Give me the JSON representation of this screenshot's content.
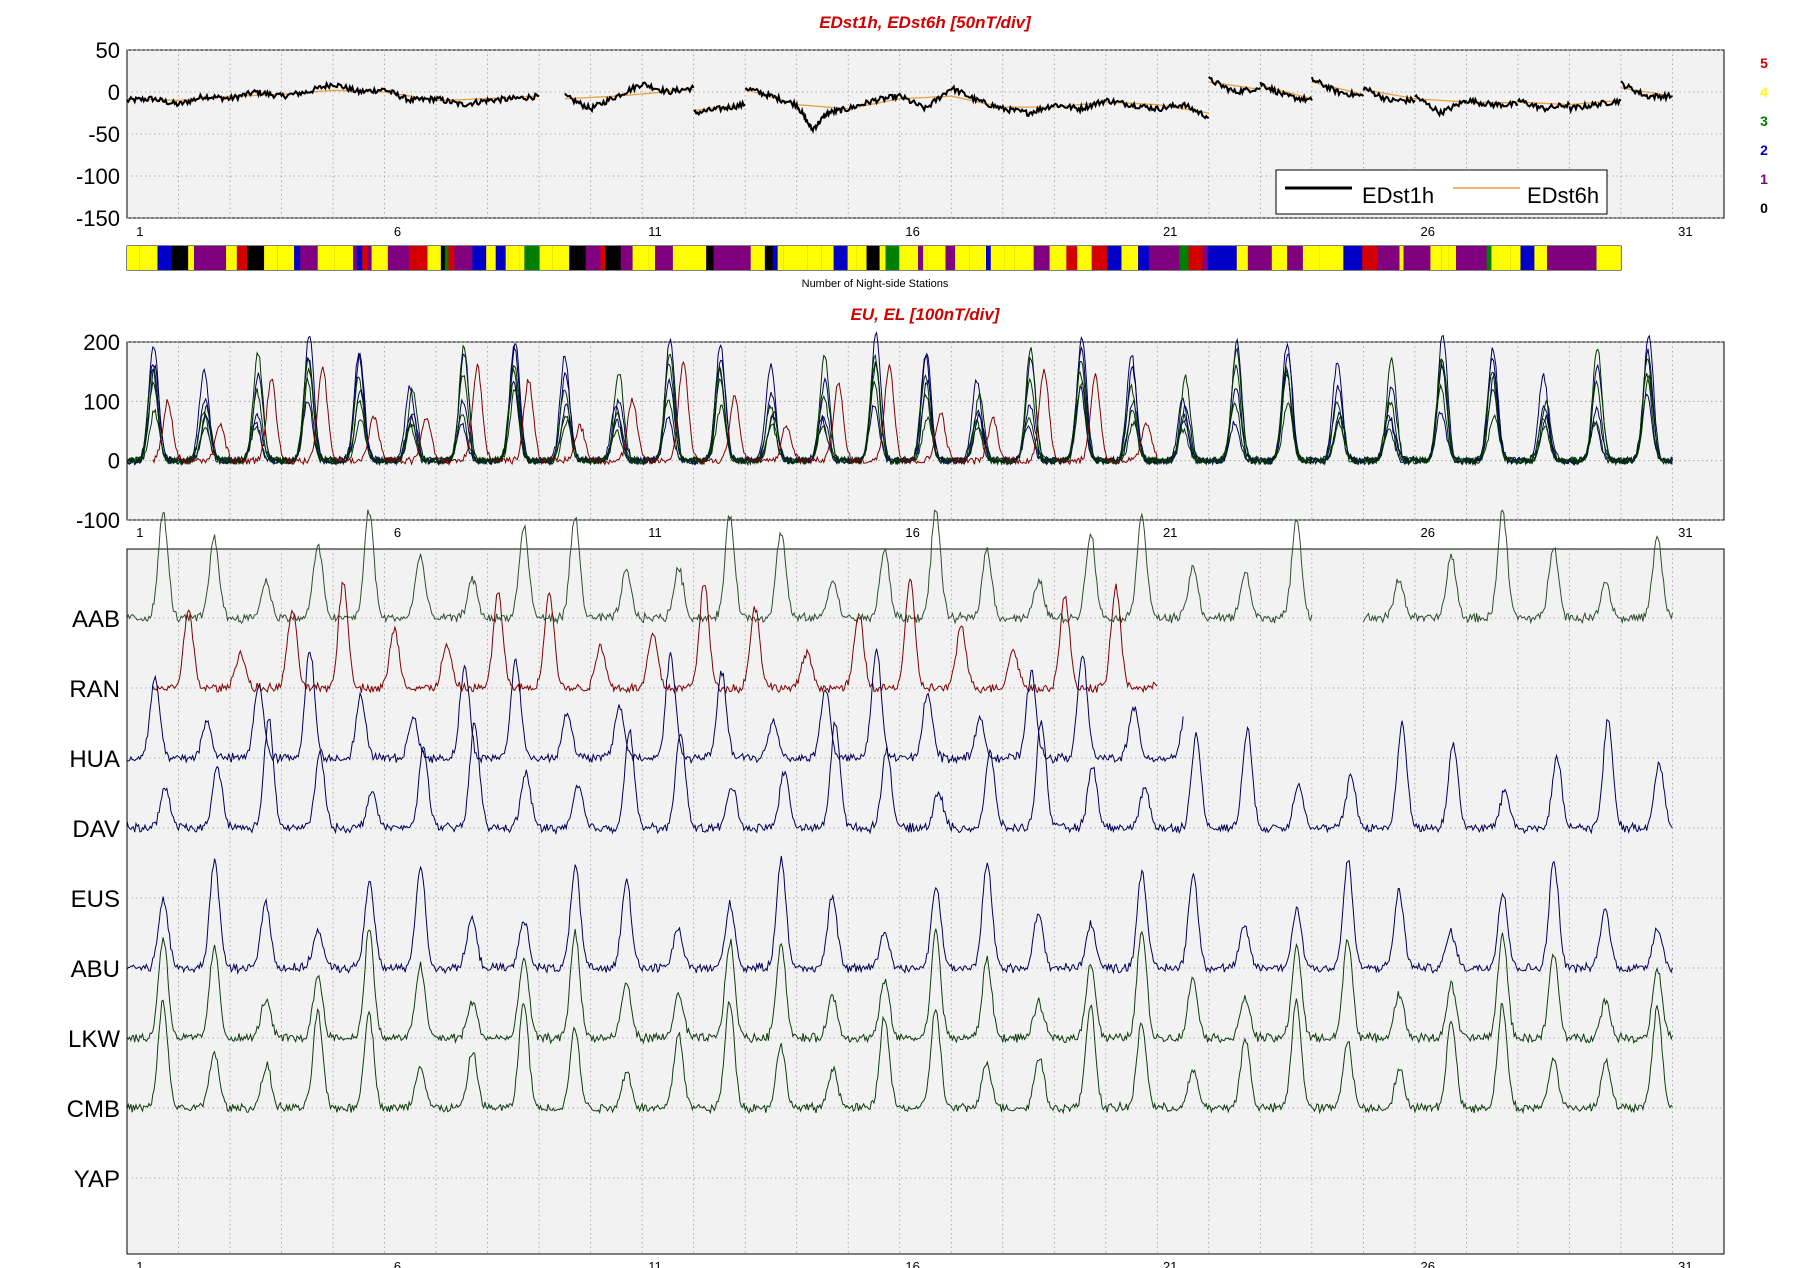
{
  "chart_data": [
    {
      "type": "line",
      "title": "EDst1h, EDst6h [50nT/div]",
      "ylim": [
        -150,
        50
      ],
      "yticks": [
        "50",
        "0",
        "-50",
        "-100",
        "-150"
      ],
      "xlim": [
        0,
        31
      ],
      "xticks": [
        "1",
        "6",
        "11",
        "16",
        "21",
        "26",
        "31"
      ],
      "grid": true,
      "legend": {
        "position": "bottom-right",
        "entries": [
          "EDst1h",
          "EDst6h"
        ]
      },
      "colors": {
        "EDst1h": "#000000",
        "EDst6h": "#e8a040"
      },
      "series": [
        {
          "name": "EDst1h",
          "segments": [
            {
              "x": [
                0.0,
                0.5,
                1.0,
                1.5,
                2.0,
                2.5,
                3.0,
                3.5,
                4.0,
                4.5,
                5.0,
                5.5,
                6.0,
                6.5,
                7.0,
                7.5,
                8.0
              ],
              "y": [
                -10,
                -8,
                -15,
                -5,
                -8,
                0,
                -5,
                0,
                10,
                0,
                3,
                -10,
                -8,
                -15,
                -10,
                -8,
                -5
              ]
            },
            {
              "x": [
                8.5,
                9.0,
                9.5,
                10.0,
                10.5,
                11.0
              ],
              "y": [
                -5,
                -20,
                -5,
                10,
                0,
                5
              ]
            },
            {
              "x": [
                11.0,
                11.5,
                12.0
              ],
              "y": [
                -25,
                -20,
                -15
              ]
            },
            {
              "x": [
                12.0,
                12.5,
                13.0,
                13.3,
                13.6,
                14.0,
                14.5,
                15.0,
                15.5,
                16.0,
                16.5,
                17.0,
                17.5,
                18.0,
                18.5,
                19.0,
                19.5,
                20.0,
                20.5,
                21.0
              ],
              "y": [
                5,
                -5,
                -15,
                -45,
                -25,
                -20,
                -10,
                -5,
                -20,
                5,
                -10,
                -20,
                -25,
                -15,
                -20,
                -10,
                -15,
                -20,
                -15,
                -30
              ]
            },
            {
              "x": [
                21.0,
                21.5,
                22.0
              ],
              "y": [
                15,
                0,
                5
              ]
            },
            {
              "x": [
                22.0,
                22.5,
                23.0
              ],
              "y": [
                10,
                -5,
                -10
              ]
            },
            {
              "x": [
                23.0,
                23.5,
                24.0
              ],
              "y": [
                15,
                0,
                -5
              ]
            },
            {
              "x": [
                24.0,
                24.5,
                25.0
              ],
              "y": [
                5,
                -10,
                -10
              ]
            },
            {
              "x": [
                25.0,
                25.5,
                26.0
              ],
              "y": [
                -5,
                -25,
                -10
              ]
            },
            {
              "x": [
                26.0,
                26.5,
                27.0
              ],
              "y": [
                -10,
                -15,
                -15
              ]
            },
            {
              "x": [
                27.0,
                27.5,
                28.0
              ],
              "y": [
                -10,
                -20,
                -15
              ]
            },
            {
              "x": [
                28.0,
                28.5,
                29.0
              ],
              "y": [
                -20,
                -15,
                -10
              ]
            },
            {
              "x": [
                29.0,
                29.5,
                30.0
              ],
              "y": [
                10,
                -5,
                -5
              ]
            }
          ]
        },
        {
          "name": "EDst6h",
          "segments": [
            {
              "x": [
                0.0,
                1.0,
                2.0,
                3.0,
                4.0,
                5.0,
                6.0,
                7.0,
                8.0
              ],
              "y": [
                -8,
                -10,
                -5,
                -3,
                2,
                0,
                -10,
                -8,
                -5
              ]
            },
            {
              "x": [
                8.5,
                9.5,
                11.0
              ],
              "y": [
                -8,
                -5,
                3
              ]
            },
            {
              "x": [
                11.0,
                12.0
              ],
              "y": [
                -22,
                -15
              ]
            },
            {
              "x": [
                12.0,
                13.0,
                14.0,
                15.0,
                16.0,
                17.0,
                18.0,
                19.0,
                20.0,
                21.0
              ],
              "y": [
                3,
                -15,
                -20,
                -8,
                -5,
                -18,
                -18,
                -12,
                -15,
                -25
              ]
            },
            {
              "x": [
                21.0,
                22.0
              ],
              "y": [
                12,
                3
              ]
            },
            {
              "x": [
                22.0,
                23.0
              ],
              "y": [
                8,
                -8
              ]
            },
            {
              "x": [
                23.0,
                24.0
              ],
              "y": [
                12,
                -3
              ]
            },
            {
              "x": [
                24.0,
                25.0
              ],
              "y": [
                3,
                -8
              ]
            },
            {
              "x": [
                25.0,
                26.0
              ],
              "y": [
                -8,
                -12
              ]
            },
            {
              "x": [
                26.0,
                27.0
              ],
              "y": [
                -12,
                -13
              ]
            },
            {
              "x": [
                27.0,
                28.0
              ],
              "y": [
                -12,
                -15
              ]
            },
            {
              "x": [
                28.0,
                29.0
              ],
              "y": [
                -15,
                -10
              ]
            },
            {
              "x": [
                29.0,
                30.0
              ],
              "y": [
                5,
                -5
              ]
            }
          ]
        }
      ]
    },
    {
      "type": "heatmap",
      "title": "Number of Night-side Stations",
      "xlim": [
        0,
        31
      ],
      "range": [
        0,
        29
      ],
      "scale": [
        {
          "label": "5",
          "color": "#d40000"
        },
        {
          "label": "4",
          "color": "#ffff00"
        },
        {
          "label": "3",
          "color": "#008000"
        },
        {
          "label": "2",
          "color": "#0000c8"
        },
        {
          "label": "1",
          "color": "#800080"
        },
        {
          "label": "0",
          "color": "#000000"
        }
      ]
    },
    {
      "type": "line",
      "title": "EU, EL   [100nT/div]",
      "ylim": [
        -100,
        200
      ],
      "yticks": [
        "200",
        "100",
        "0",
        "-100"
      ],
      "xlim": [
        0,
        31
      ],
      "xticks": [
        "1",
        "6",
        "11",
        "16",
        "21",
        "26",
        "31"
      ],
      "grid": true,
      "series": [
        {
          "color": "#000060",
          "peak": 150,
          "range": [
            0,
            30
          ]
        },
        {
          "color": "#003300",
          "peak": 130,
          "range": [
            0,
            30
          ]
        },
        {
          "color": "#800000",
          "peak": 140,
          "range": [
            0.5,
            20
          ]
        }
      ]
    },
    {
      "type": "line",
      "xlim": [
        0,
        31
      ],
      "xticks": [
        "1",
        "6",
        "11",
        "16",
        "21",
        "26",
        "31"
      ],
      "grid": true,
      "stations": [
        {
          "label": "AAB",
          "color": "#2f4f2f",
          "range": [
            0,
            23
          ],
          "peak_day": 0.2,
          "extra": [
            [
              24,
              30
            ]
          ]
        },
        {
          "label": "RAN",
          "color": "#800000",
          "range": [
            0.5,
            20
          ],
          "peak_day": 0.7
        },
        {
          "label": "HUA",
          "color": "#00005a",
          "range": [
            0,
            20.5
          ],
          "peak_day": 0.05
        },
        {
          "label": "DAV",
          "color": "#00005a",
          "range": [
            0,
            30
          ],
          "peak_day": 0.25
        },
        {
          "label": "EUS",
          "color": "#00005a",
          "range": null
        },
        {
          "label": "ABU",
          "color": "#00005a",
          "range": [
            0,
            30
          ],
          "peak_day": 0.2
        },
        {
          "label": "LKW",
          "color": "#0f3d0f",
          "range": [
            0,
            30
          ],
          "peak_day": 0.2
        },
        {
          "label": "CMB",
          "color": "#0f3d0f",
          "range": [
            0,
            30
          ],
          "peak_day": 0.2
        },
        {
          "label": "YAP",
          "color": "#00005a",
          "range": null
        }
      ]
    }
  ]
}
